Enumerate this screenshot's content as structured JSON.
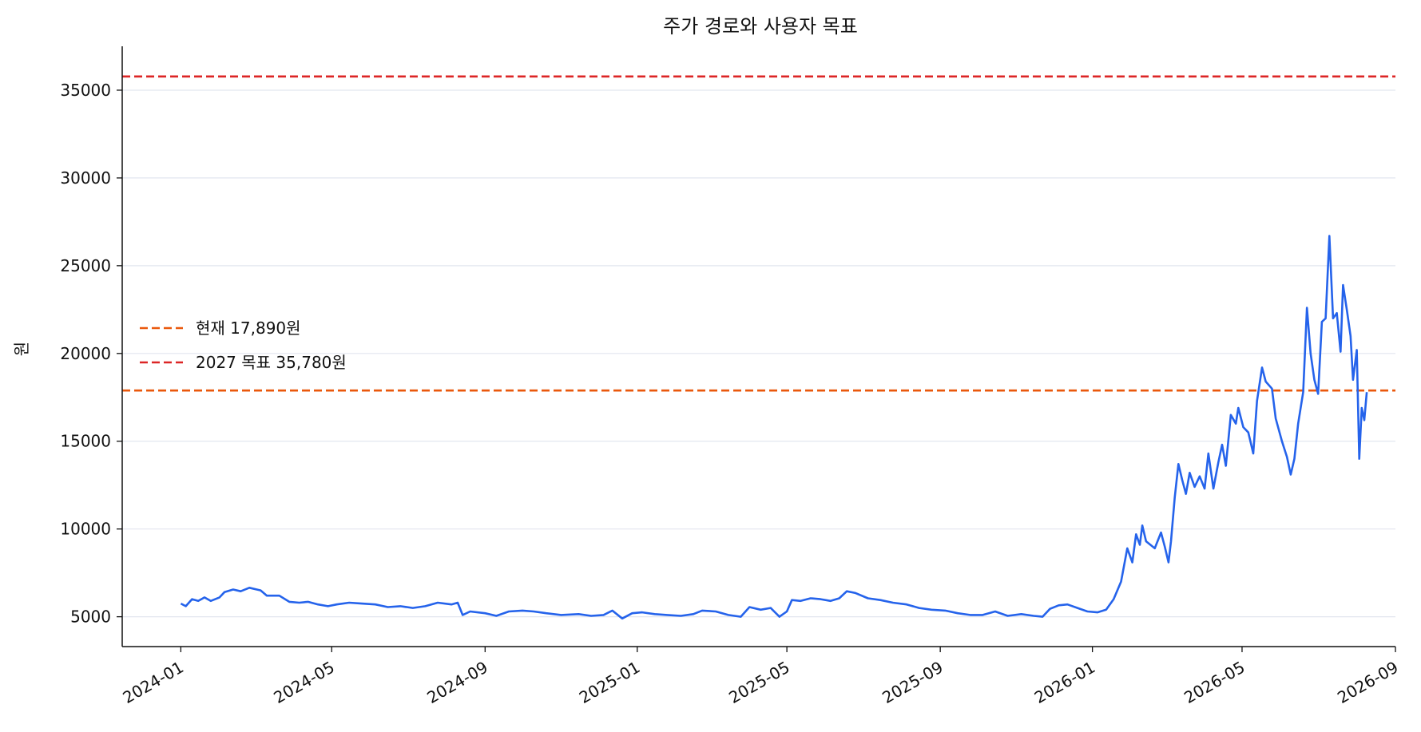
{
  "chart_data": {
    "type": "line",
    "title": "주가 경로와 사용자 목표",
    "xlabel": "",
    "ylabel": "원",
    "xlim": [
      "2023-11-15",
      "2026-09-01"
    ],
    "ylim": [
      3300,
      37500
    ],
    "grid": "horizontal",
    "legend_position": "left-middle",
    "x_ticks": [
      "2024-01",
      "2024-05",
      "2024-09",
      "2025-01",
      "2025-05",
      "2025-09",
      "2026-01",
      "2026-05",
      "2026-09"
    ],
    "y_ticks": [
      "5000",
      "10000",
      "15000",
      "20000",
      "25000",
      "30000",
      "35000"
    ],
    "colors": {
      "price": "#2563eb",
      "current": "#ea580c",
      "target": "#dc2626",
      "grid": "#e2e6ef"
    },
    "reference_lines": [
      {
        "label": "현재 17,890원",
        "value": 17890,
        "color": "#ea580c",
        "style": "dashed"
      },
      {
        "label": "2027 목표 35,780원",
        "value": 35780,
        "color": "#dc2626",
        "style": "dashed"
      }
    ],
    "series": [
      {
        "color": "#2563eb",
        "points": [
          [
            "2024-01-01",
            5750
          ],
          [
            "2024-01-05",
            5600
          ],
          [
            "2024-01-10",
            6000
          ],
          [
            "2024-01-15",
            5900
          ],
          [
            "2024-01-20",
            6100
          ],
          [
            "2024-01-25",
            5900
          ],
          [
            "2024-02-01",
            6100
          ],
          [
            "2024-02-05",
            6400
          ],
          [
            "2024-02-12",
            6550
          ],
          [
            "2024-02-18",
            6450
          ],
          [
            "2024-02-25",
            6650
          ],
          [
            "2024-03-05",
            6500
          ],
          [
            "2024-03-10",
            6200
          ],
          [
            "2024-03-20",
            6200
          ],
          [
            "2024-03-28",
            5850
          ],
          [
            "2024-04-05",
            5800
          ],
          [
            "2024-04-12",
            5850
          ],
          [
            "2024-04-20",
            5700
          ],
          [
            "2024-04-28",
            5600
          ],
          [
            "2024-05-05",
            5700
          ],
          [
            "2024-05-15",
            5800
          ],
          [
            "2024-05-25",
            5750
          ],
          [
            "2024-06-05",
            5700
          ],
          [
            "2024-06-15",
            5550
          ],
          [
            "2024-06-25",
            5600
          ],
          [
            "2024-07-05",
            5500
          ],
          [
            "2024-07-15",
            5600
          ],
          [
            "2024-07-25",
            5800
          ],
          [
            "2024-08-05",
            5700
          ],
          [
            "2024-08-10",
            5800
          ],
          [
            "2024-08-14",
            5100
          ],
          [
            "2024-08-20",
            5300
          ],
          [
            "2024-09-01",
            5200
          ],
          [
            "2024-09-10",
            5050
          ],
          [
            "2024-09-20",
            5300
          ],
          [
            "2024-10-01",
            5350
          ],
          [
            "2024-10-10",
            5300
          ],
          [
            "2024-10-20",
            5200
          ],
          [
            "2024-11-01",
            5100
          ],
          [
            "2024-11-15",
            5150
          ],
          [
            "2024-11-25",
            5050
          ],
          [
            "2024-12-05",
            5100
          ],
          [
            "2024-12-12",
            5350
          ],
          [
            "2024-12-20",
            4900
          ],
          [
            "2024-12-28",
            5200
          ],
          [
            "2025-01-05",
            5250
          ],
          [
            "2025-01-15",
            5150
          ],
          [
            "2025-01-25",
            5100
          ],
          [
            "2025-02-05",
            5050
          ],
          [
            "2025-02-15",
            5150
          ],
          [
            "2025-02-22",
            5350
          ],
          [
            "2025-03-05",
            5300
          ],
          [
            "2025-03-15",
            5100
          ],
          [
            "2025-03-25",
            5000
          ],
          [
            "2025-04-01",
            5550
          ],
          [
            "2025-04-10",
            5400
          ],
          [
            "2025-04-18",
            5500
          ],
          [
            "2025-04-25",
            5000
          ],
          [
            "2025-05-01",
            5300
          ],
          [
            "2025-05-05",
            5950
          ],
          [
            "2025-05-12",
            5900
          ],
          [
            "2025-05-20",
            6050
          ],
          [
            "2025-05-28",
            6000
          ],
          [
            "2025-06-05",
            5900
          ],
          [
            "2025-06-12",
            6050
          ],
          [
            "2025-06-18",
            6450
          ],
          [
            "2025-06-25",
            6350
          ],
          [
            "2025-07-05",
            6050
          ],
          [
            "2025-07-15",
            5950
          ],
          [
            "2025-07-25",
            5800
          ],
          [
            "2025-08-05",
            5700
          ],
          [
            "2025-08-15",
            5500
          ],
          [
            "2025-08-25",
            5400
          ],
          [
            "2025-09-05",
            5350
          ],
          [
            "2025-09-15",
            5200
          ],
          [
            "2025-09-25",
            5100
          ],
          [
            "2025-10-05",
            5100
          ],
          [
            "2025-10-15",
            5300
          ],
          [
            "2025-10-25",
            5050
          ],
          [
            "2025-11-05",
            5150
          ],
          [
            "2025-11-15",
            5050
          ],
          [
            "2025-11-22",
            5000
          ],
          [
            "2025-11-28",
            5450
          ],
          [
            "2025-12-05",
            5650
          ],
          [
            "2025-12-12",
            5700
          ],
          [
            "2025-12-20",
            5500
          ],
          [
            "2025-12-28",
            5300
          ],
          [
            "2026-01-05",
            5250
          ],
          [
            "2026-01-12",
            5400
          ],
          [
            "2026-01-18",
            6000
          ],
          [
            "2026-01-24",
            7000
          ],
          [
            "2026-01-29",
            8900
          ],
          [
            "2026-02-02",
            8100
          ],
          [
            "2026-02-05",
            9700
          ],
          [
            "2026-02-08",
            9100
          ],
          [
            "2026-02-10",
            10200
          ],
          [
            "2026-02-13",
            9300
          ],
          [
            "2026-02-20",
            8900
          ],
          [
            "2026-02-25",
            9800
          ],
          [
            "2026-02-28",
            9000
          ],
          [
            "2026-03-03",
            8100
          ],
          [
            "2026-03-05",
            9300
          ],
          [
            "2026-03-08",
            11800
          ],
          [
            "2026-03-11",
            13700
          ],
          [
            "2026-03-14",
            12800
          ],
          [
            "2026-03-17",
            12000
          ],
          [
            "2026-03-20",
            13200
          ],
          [
            "2026-03-24",
            12400
          ],
          [
            "2026-03-28",
            13000
          ],
          [
            "2026-04-01",
            12300
          ],
          [
            "2026-04-04",
            14300
          ],
          [
            "2026-04-08",
            12300
          ],
          [
            "2026-04-12",
            13800
          ],
          [
            "2026-04-15",
            14800
          ],
          [
            "2026-04-18",
            13600
          ],
          [
            "2026-04-22",
            16500
          ],
          [
            "2026-04-26",
            16000
          ],
          [
            "2026-04-28",
            16900
          ],
          [
            "2026-05-02",
            15800
          ],
          [
            "2026-05-06",
            15500
          ],
          [
            "2026-05-10",
            14300
          ],
          [
            "2026-05-13",
            17300
          ],
          [
            "2026-05-17",
            19200
          ],
          [
            "2026-05-20",
            18400
          ],
          [
            "2026-05-25",
            18000
          ],
          [
            "2026-05-28",
            16300
          ],
          [
            "2026-06-02",
            15000
          ],
          [
            "2026-06-06",
            14100
          ],
          [
            "2026-06-09",
            13100
          ],
          [
            "2026-06-12",
            14000
          ],
          [
            "2026-06-15",
            16000
          ],
          [
            "2026-06-19",
            17800
          ],
          [
            "2026-06-22",
            22600
          ],
          [
            "2026-06-25",
            20000
          ],
          [
            "2026-06-28",
            18500
          ],
          [
            "2026-07-01",
            17700
          ],
          [
            "2026-07-04",
            21800
          ],
          [
            "2026-07-07",
            22000
          ],
          [
            "2026-07-10",
            26700
          ],
          [
            "2026-07-13",
            22000
          ],
          [
            "2026-07-16",
            22300
          ],
          [
            "2026-07-19",
            20100
          ],
          [
            "2026-07-21",
            23900
          ],
          [
            "2026-07-24",
            22500
          ],
          [
            "2026-07-27",
            21000
          ],
          [
            "2026-07-29",
            18500
          ],
          [
            "2026-08-01",
            20200
          ],
          [
            "2026-08-03",
            14000
          ],
          [
            "2026-08-05",
            16900
          ],
          [
            "2026-08-07",
            16200
          ],
          [
            "2026-08-09",
            17800
          ]
        ]
      }
    ]
  }
}
